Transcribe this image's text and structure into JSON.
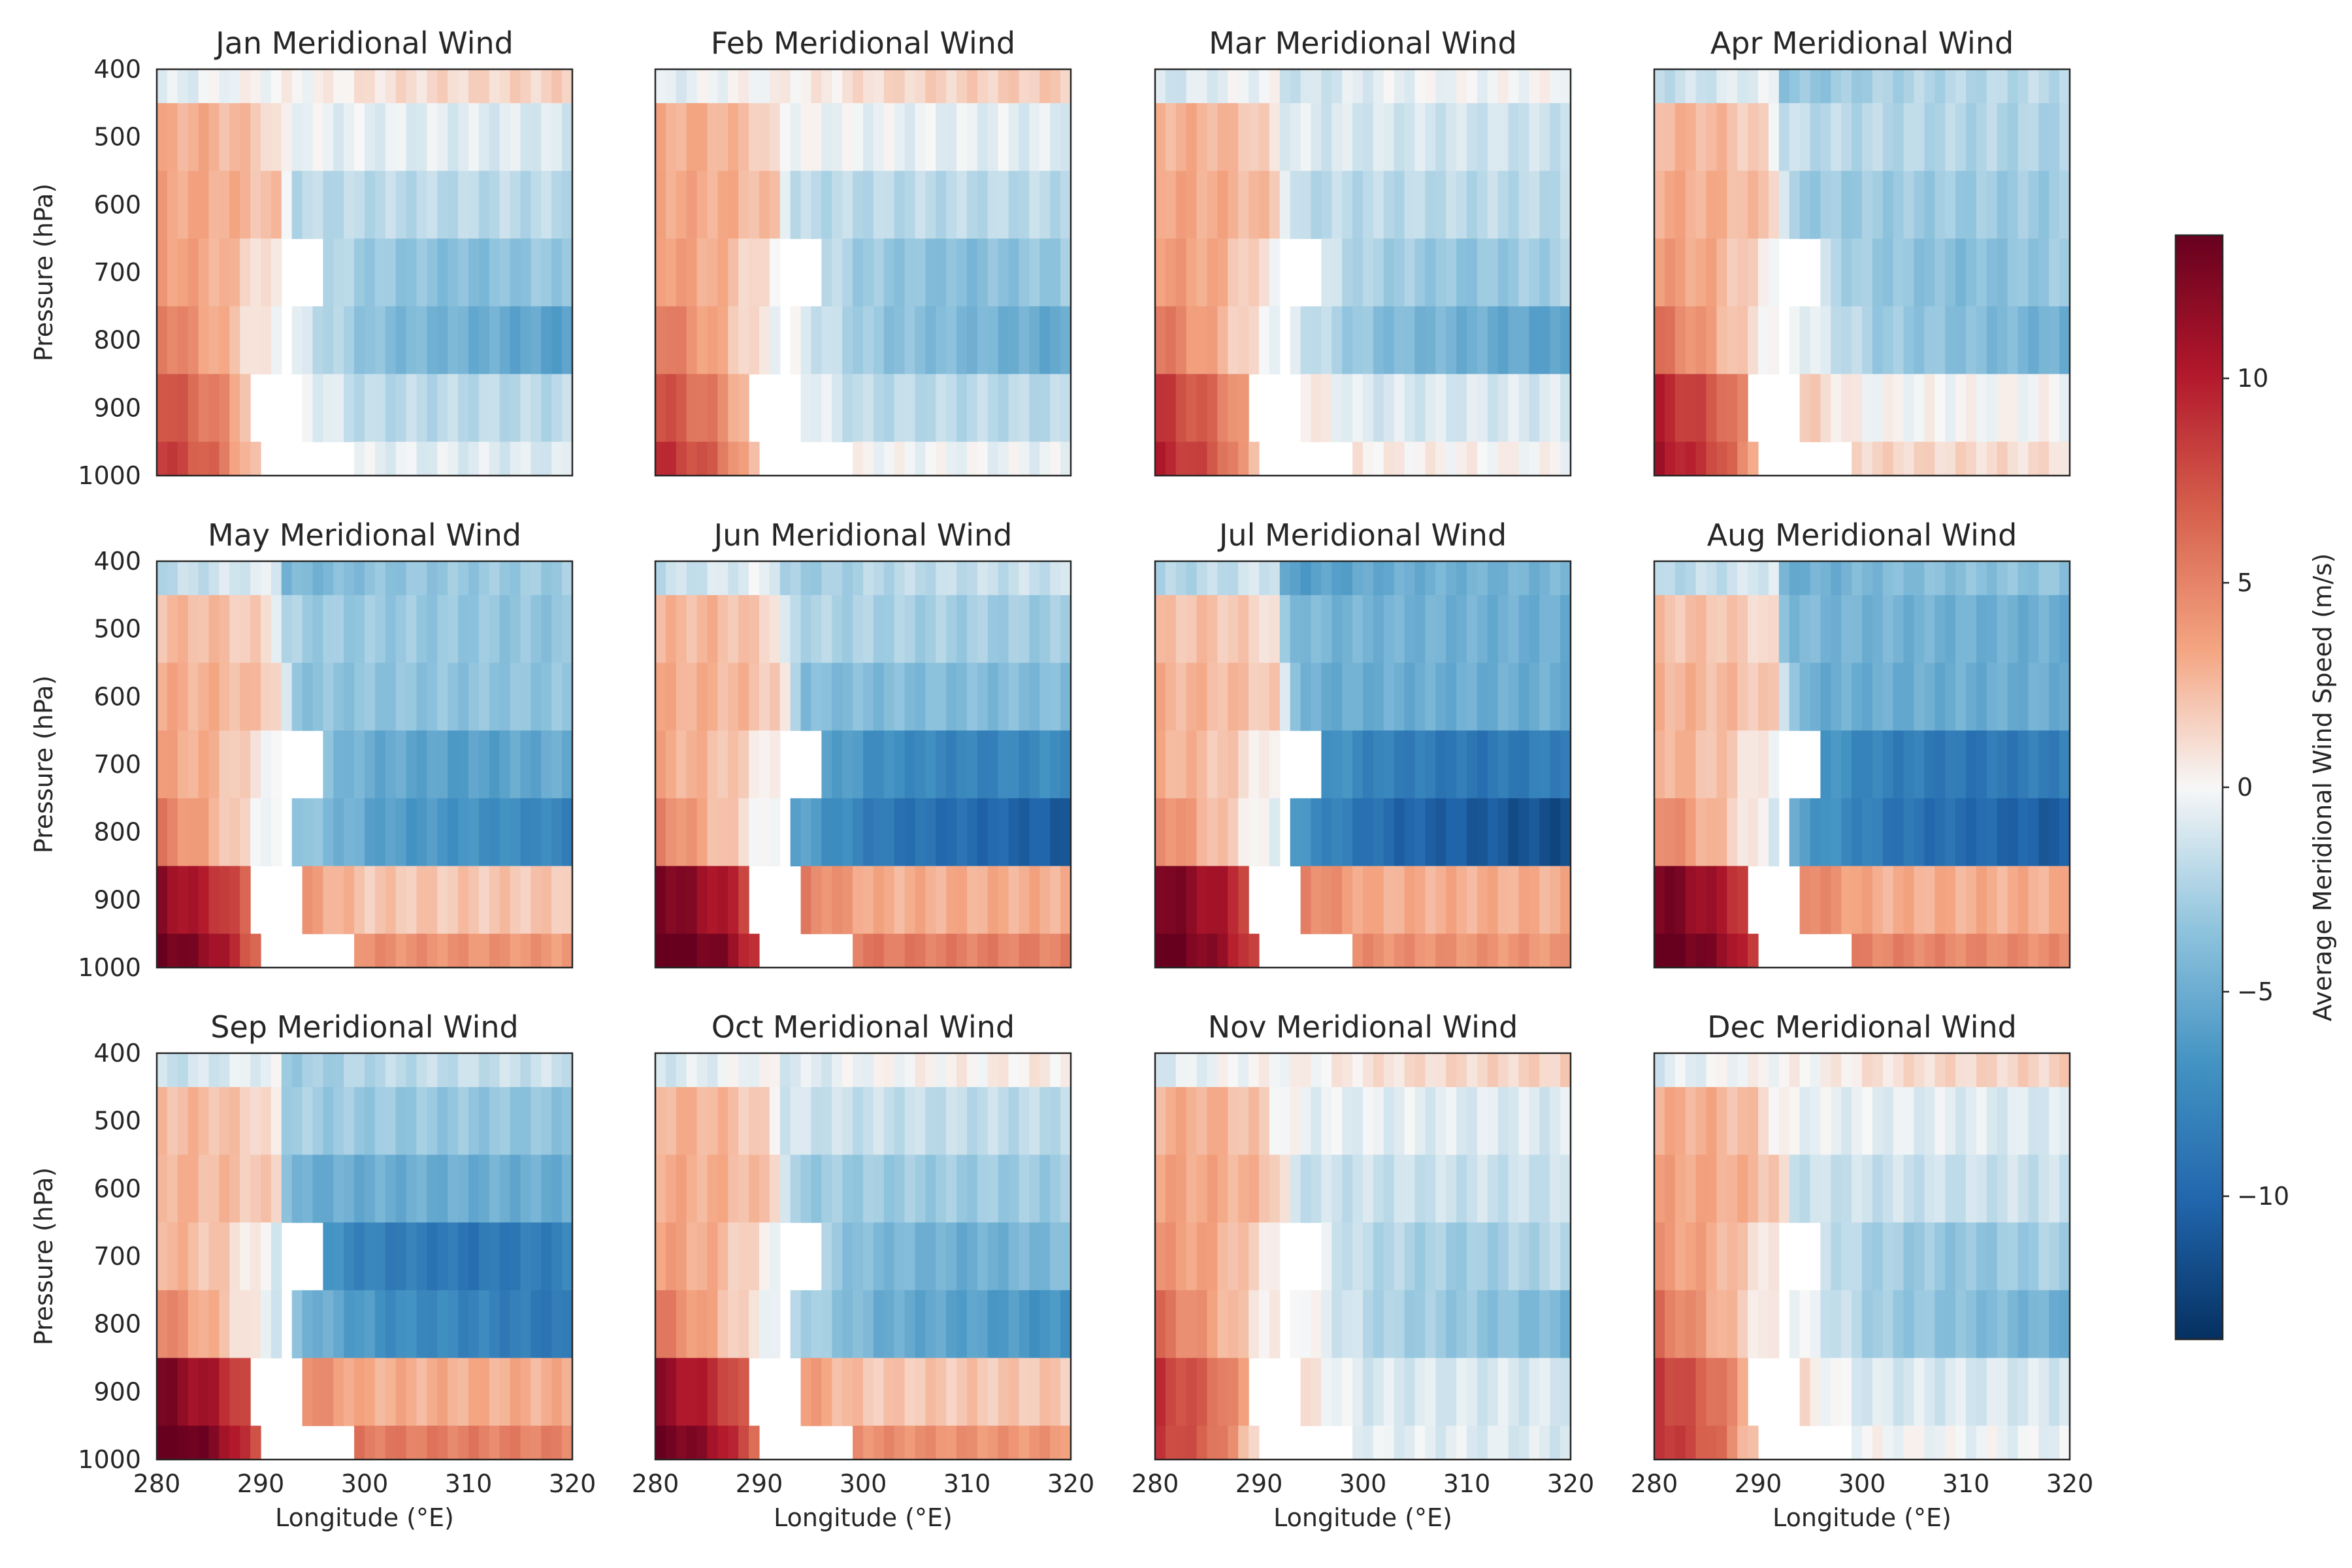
{
  "chart_data": {
    "type": "heatmap",
    "panels": [
      {
        "title": "Jan Meridional Wind",
        "month": "Jan"
      },
      {
        "title": "Feb Meridional Wind",
        "month": "Feb"
      },
      {
        "title": "Mar Meridional Wind",
        "month": "Mar"
      },
      {
        "title": "Apr Meridional Wind",
        "month": "Apr"
      },
      {
        "title": "May Meridional Wind",
        "month": "May"
      },
      {
        "title": "Jun Meridional Wind",
        "month": "Jun"
      },
      {
        "title": "Jul Meridional Wind",
        "month": "Jul"
      },
      {
        "title": "Aug Meridional Wind",
        "month": "Aug"
      },
      {
        "title": "Sep Meridional Wind",
        "month": "Sep"
      },
      {
        "title": "Oct Meridional Wind",
        "month": "Oct"
      },
      {
        "title": "Nov Meridional Wind",
        "month": "Nov"
      },
      {
        "title": "Dec Meridional Wind",
        "month": "Dec"
      }
    ],
    "xlabel": "Longitude (°E)",
    "ylabel": "Pressure (hPa)",
    "colorbar_label": "Average Meridional Wind Speed (m/s)",
    "xlim": [
      280,
      320
    ],
    "ylim": [
      1000,
      400
    ],
    "x_ticks": [
      280,
      290,
      300,
      310,
      320
    ],
    "y_ticks": [
      400,
      500,
      600,
      700,
      800,
      900,
      1000
    ],
    "pressure_levels": [
      400,
      500,
      600,
      700,
      800,
      900,
      1000
    ],
    "colorbar_ticks": [
      10,
      5,
      0,
      -5,
      -10
    ],
    "colorbar_tick_labels": [
      "10",
      "5",
      "0",
      "−5",
      "−10"
    ],
    "vmin": -13.5,
    "vmax": 13.5,
    "colormap": "RdBu_r",
    "grid": false,
    "lon_columns": 40,
    "row_profiles": {
      "400": [
        [
          280,
          -1
        ],
        [
          288,
          0
        ],
        [
          296,
          0.2
        ],
        [
          300,
          0.8
        ],
        [
          306,
          1.2
        ],
        [
          320,
          1.6
        ]
      ],
      "500": [
        [
          280,
          3
        ],
        [
          285,
          3
        ],
        [
          290,
          2
        ],
        [
          292,
          0
        ],
        [
          296,
          -0.5
        ],
        [
          320,
          -1
        ]
      ],
      "600": [
        [
          280,
          3.5
        ],
        [
          287,
          3
        ],
        [
          292,
          2
        ],
        [
          293,
          -2
        ],
        [
          300,
          -2
        ],
        [
          320,
          -2
        ]
      ],
      "700": [
        [
          280,
          4
        ],
        [
          286,
          3
        ],
        [
          290,
          1
        ],
        [
          294,
          -1
        ],
        [
          300,
          -3
        ],
        [
          310,
          -4
        ],
        [
          320,
          -3
        ]
      ],
      "800": [
        [
          280,
          6
        ],
        [
          286,
          3
        ],
        [
          290,
          0.5
        ],
        [
          296,
          -2
        ],
        [
          302,
          -4
        ],
        [
          312,
          -5
        ],
        [
          320,
          -6
        ]
      ],
      "900": [
        [
          280,
          8
        ],
        [
          286,
          5
        ],
        [
          290,
          1
        ],
        [
          294,
          0
        ],
        [
          300,
          -2
        ],
        [
          310,
          -2
        ],
        [
          320,
          -2
        ]
      ],
      "1000": [
        [
          280,
          9
        ],
        [
          286,
          6
        ],
        [
          289,
          2
        ],
        [
          292,
          0
        ],
        [
          300,
          -0.5
        ],
        [
          320,
          -1
        ]
      ]
    },
    "month_modifiers": [
      {
        "400": 0,
        "500": 0,
        "600": 0,
        "700": 0,
        "800": 0,
        "900": 0,
        "1000": 0,
        "shift": 0
      },
      {
        "400": 0.3,
        "500": 0.2,
        "600": 0,
        "700": 0,
        "800": 0.5,
        "900": 0,
        "1000": 0.5,
        "shift": 0
      },
      {
        "400": -1.5,
        "500": -0.5,
        "600": 0,
        "700": 0.5,
        "800": 0,
        "900": 1,
        "1000": 1,
        "shift": 0
      },
      {
        "400": -3.5,
        "500": -1.5,
        "600": -1,
        "700": 0,
        "800": 1,
        "900": 2,
        "1000": 2,
        "shift": 0
      },
      {
        "400": -4.5,
        "500": -2.5,
        "600": -1.5,
        "700": -2,
        "800": -2,
        "900": 4,
        "1000": 5,
        "shift": 0
      },
      {
        "400": -3,
        "500": -2,
        "600": -2,
        "700": -4,
        "800": -5,
        "900": 5,
        "1000": 6,
        "shift": 1
      },
      {
        "400": -6,
        "500": -4,
        "600": -3,
        "700": -5,
        "800": -6,
        "900": 5,
        "1000": 5,
        "shift": 1
      },
      {
        "400": -5,
        "500": -4,
        "600": -3,
        "700": -5,
        "800": -5,
        "900": 5,
        "1000": 5.5,
        "shift": 1
      },
      {
        "400": -3,
        "500": -2.5,
        "600": -3,
        "700": -5,
        "800": -3,
        "900": 5,
        "1000": 6,
        "shift": 0
      },
      {
        "400": -1,
        "500": -1,
        "600": -1,
        "700": -1,
        "800": -1,
        "900": 4,
        "1000": 5,
        "shift": 0
      },
      {
        "400": 0,
        "500": 0,
        "600": 0.5,
        "700": 1,
        "800": 1.5,
        "900": 1,
        "1000": 0,
        "shift": 0
      },
      {
        "400": 0,
        "500": 0,
        "600": 0.5,
        "700": 0.5,
        "800": 1,
        "900": 1,
        "1000": 0.5,
        "shift": 0
      }
    ],
    "gaps_lon_ranges": {
      "700": [
        [
          292,
          296
        ]
      ],
      "800": [
        [
          292,
          293
        ]
      ],
      "900": [
        [
          289,
          294
        ]
      ],
      "1000": [
        [
          290,
          299
        ]
      ]
    }
  },
  "colors": {
    "axes": "#262626",
    "background": "#ffffff",
    "nan_cell": "#ffffff"
  }
}
